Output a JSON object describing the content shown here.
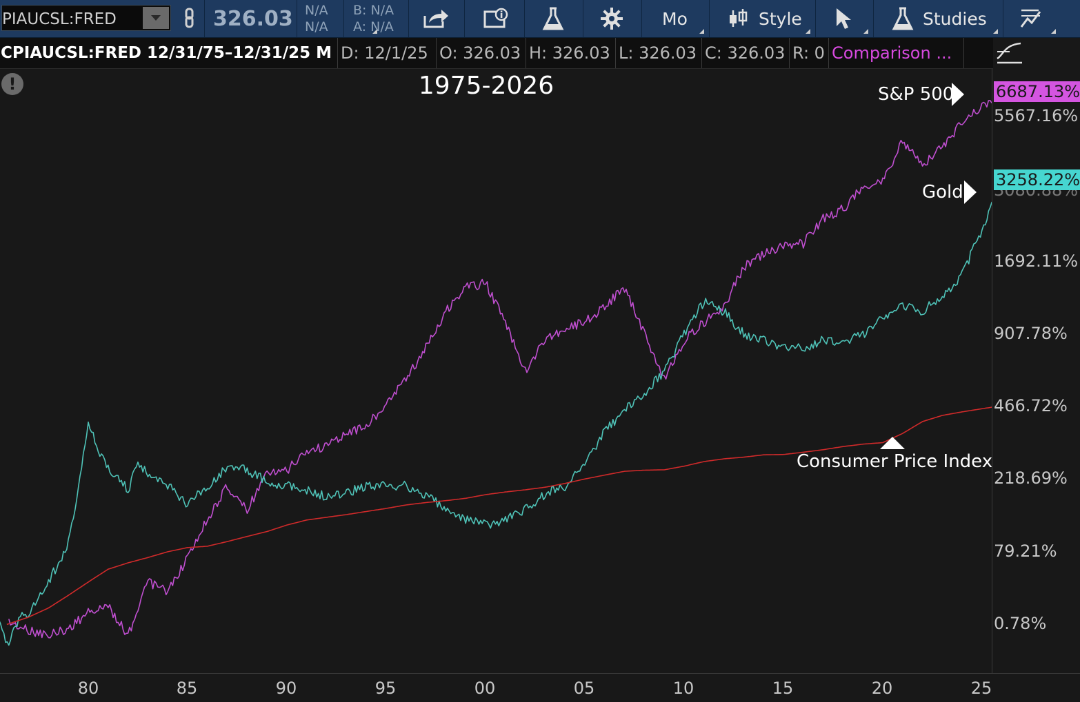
{
  "toolbar": {
    "symbol": "PIAUCSL:FRED",
    "price": "326.03",
    "na_top": "N/A",
    "na_bottom": "N/A",
    "bid": "B: N/A",
    "ask": "A: N/A",
    "period_label": "Mo",
    "style_label": "Style",
    "studies_label": "Studies"
  },
  "infobar": {
    "title": "CPIAUCSL:FRED 12/31/75–12/31/25 M",
    "date": "D: 12/1/25",
    "open": "O: 326.03",
    "high": "H: 326.03",
    "low": "L: 326.03",
    "close": "C: 326.03",
    "range": "R: 0",
    "comparison": "Comparison ..."
  },
  "chart": {
    "title": "1975-2026",
    "annotations": {
      "sp500": "S&P 500",
      "gold": "Gold",
      "cpi": "Consumer Price Index"
    },
    "price_tags": {
      "sp500": "6687.13%",
      "gold": "3258.22%"
    },
    "colors": {
      "sp500": "#c04fd0",
      "gold": "#4fc3b8",
      "cpi": "#d02a2a",
      "sp500_tag_bg": "#d455e0",
      "gold_tag_bg": "#46d6d0"
    }
  },
  "chart_data": {
    "type": "line",
    "title": "1975-2026",
    "xlabel": "",
    "ylabel": "",
    "x_ticks": [
      "80",
      "85",
      "90",
      "95",
      "00",
      "05",
      "10",
      "15",
      "20",
      "25"
    ],
    "y_ticks": [
      "5567.16%",
      "3080.88%",
      "1692.11%",
      "907.78%",
      "466.72%",
      "218.69%",
      "79.21%",
      "0.78%"
    ],
    "y_scale": "log (percent change)",
    "grid": false,
    "series": [
      {
        "name": "S&P 500",
        "x": [
          1976,
          1977,
          1978,
          1979,
          1980,
          1981,
          1982,
          1983,
          1984,
          1985,
          1986,
          1987,
          1988,
          1989,
          1990,
          1991,
          1992,
          1993,
          1994,
          1995,
          1996,
          1997,
          1998,
          1999,
          2000,
          2001,
          2002,
          2003,
          2004,
          2005,
          2006,
          2007,
          2008,
          2009,
          2010,
          2011,
          2012,
          2013,
          2014,
          2015,
          2016,
          2017,
          2018,
          2019,
          2020,
          2021,
          2022,
          2023,
          2024,
          2025.9
        ],
        "y": [
          2,
          -5,
          -8,
          -3,
          10,
          15,
          -8,
          40,
          30,
          70,
          130,
          200,
          150,
          230,
          240,
          300,
          310,
          360,
          380,
          480,
          600,
          800,
          1100,
          1350,
          1400,
          1000,
          650,
          850,
          950,
          1000,
          1150,
          1350,
          900,
          600,
          850,
          1000,
          1150,
          1600,
          1800,
          1900,
          1950,
          2400,
          2600,
          3100,
          3300,
          4500,
          3700,
          4300,
          5300,
          6687
        ]
      },
      {
        "name": "Gold",
        "x": [
          1975.5,
          1976,
          1976.5,
          1977,
          1978,
          1979,
          1979.5,
          1980,
          1980.5,
          1981,
          1982,
          1982.5,
          1983,
          1984,
          1985,
          1986,
          1987,
          1988,
          1989,
          1990,
          1991,
          1992,
          1993,
          1994,
          1995,
          1996,
          1997,
          1998,
          1999,
          2000,
          2001,
          2002,
          2003,
          2004,
          2005,
          2006,
          2007,
          2008,
          2009,
          2010,
          2011,
          2012,
          2013,
          2014,
          2015,
          2016,
          2017,
          2018,
          2019,
          2020,
          2021,
          2022,
          2023,
          2024,
          2025,
          2025.9
        ],
        "y": [
          0,
          -15,
          5,
          10,
          40,
          90,
          200,
          390,
          300,
          250,
          190,
          260,
          230,
          200,
          160,
          200,
          250,
          240,
          210,
          200,
          190,
          175,
          185,
          200,
          200,
          200,
          180,
          150,
          130,
          120,
          130,
          150,
          180,
          200,
          260,
          360,
          450,
          520,
          650,
          900,
          1200,
          1100,
          900,
          850,
          800,
          800,
          850,
          850,
          900,
          1050,
          1150,
          1100,
          1250,
          1500,
          2200,
          3258
        ]
      },
      {
        "name": "Consumer Price Index",
        "x": [
          1975.9,
          1977,
          1978,
          1979,
          1980,
          1981,
          1982,
          1983,
          1984,
          1985,
          1986,
          1987,
          1988,
          1989,
          1990,
          1991,
          1992,
          1993,
          1994,
          1995,
          1996,
          1997,
          1998,
          1999,
          2000,
          2001,
          2002,
          2003,
          2004,
          2005,
          2006,
          2007,
          2008,
          2009,
          2010,
          2011,
          2012,
          2013,
          2014,
          2015,
          2016,
          2017,
          2018,
          2019,
          2020,
          2021,
          2022,
          2023,
          2024,
          2025.9
        ],
        "y": [
          0,
          6,
          14,
          26,
          40,
          55,
          63,
          70,
          78,
          84,
          86,
          93,
          101,
          109,
          120,
          129,
          134,
          139,
          145,
          151,
          158,
          163,
          167,
          172,
          180,
          186,
          191,
          197,
          206,
          217,
          227,
          237,
          240,
          241,
          251,
          264,
          272,
          277,
          284,
          285,
          292,
          300,
          310,
          318,
          323,
          355,
          400,
          425,
          440,
          466
        ]
      }
    ]
  }
}
